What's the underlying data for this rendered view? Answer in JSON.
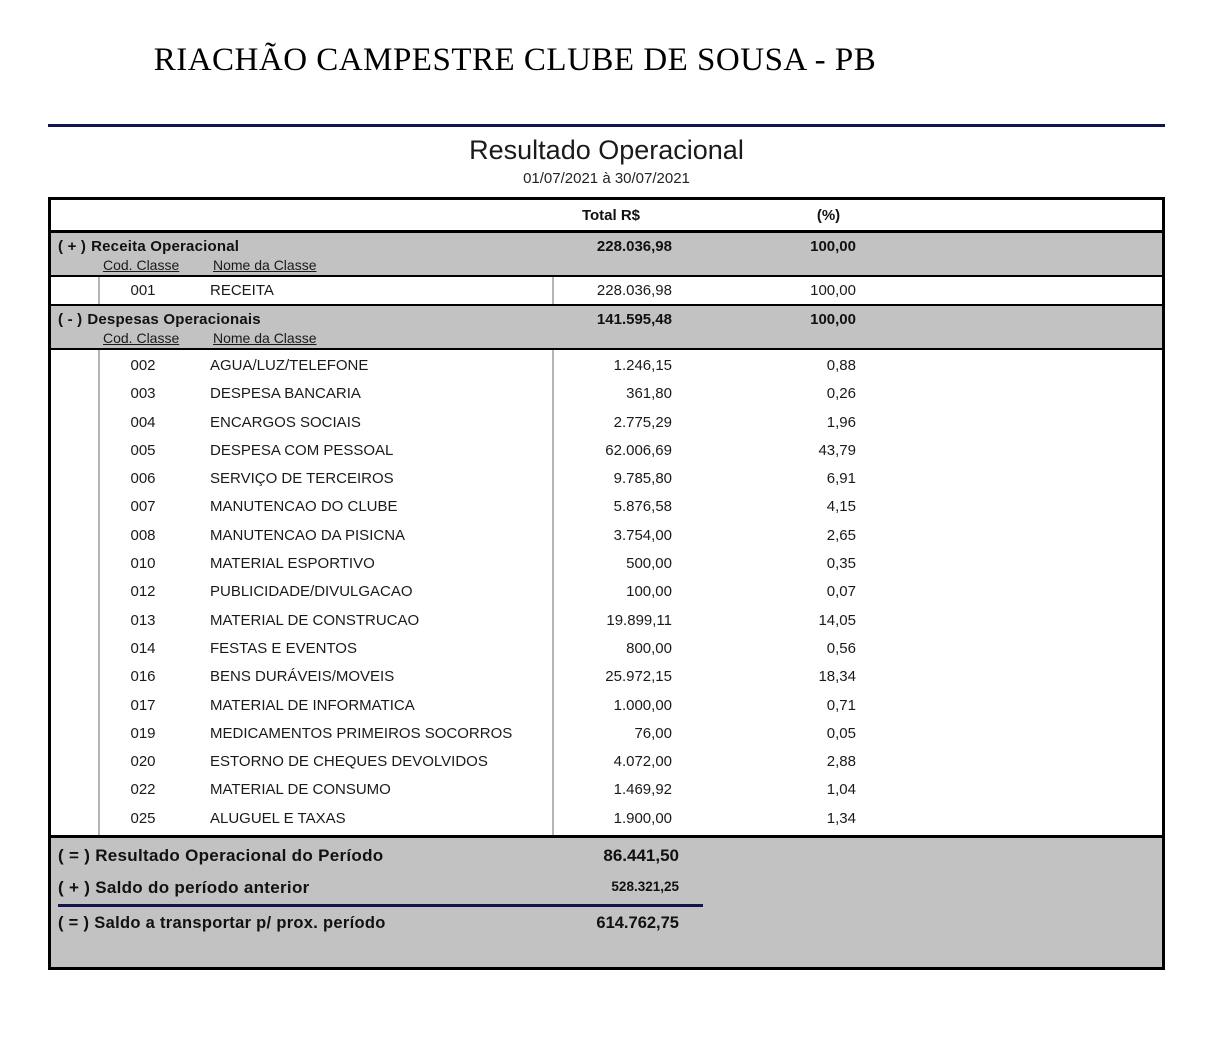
{
  "header": {
    "company": "RIACHÃO CAMPESTRE CLUBE DE SOUSA - PB",
    "title": "Resultado Operacional",
    "period": "01/07/2021 à 30/07/2021"
  },
  "colors": {
    "accent_rule": "#14144d",
    "section_background": "#c2c2c2",
    "table_border": "#000000",
    "column_divider": "#b5b5b5"
  },
  "table": {
    "columns": {
      "total": "Total R$",
      "percent": "(%)"
    },
    "subheader": {
      "code": "Cod. Classe",
      "name": "Nome da  Classe"
    },
    "sections": [
      {
        "marker": "( + )",
        "label": "Receita Operacional",
        "total": "228.036,98",
        "percent": "100,00",
        "rows": [
          {
            "code": "001",
            "name": "RECEITA",
            "total": "228.036,98",
            "percent": "100,00"
          }
        ]
      },
      {
        "marker": "( - )",
        "label": "Despesas Operacionais",
        "total": "141.595,48",
        "percent": "100,00",
        "rows": [
          {
            "code": "002",
            "name": "AGUA/LUZ/TELEFONE",
            "total": "1.246,15",
            "percent": "0,88"
          },
          {
            "code": "003",
            "name": "DESPESA BANCARIA",
            "total": "361,80",
            "percent": "0,26"
          },
          {
            "code": "004",
            "name": "ENCARGOS SOCIAIS",
            "total": "2.775,29",
            "percent": "1,96"
          },
          {
            "code": "005",
            "name": "DESPESA COM PESSOAL",
            "total": "62.006,69",
            "percent": "43,79"
          },
          {
            "code": "006",
            "name": "SERVIÇO DE TERCEIROS",
            "total": "9.785,80",
            "percent": "6,91"
          },
          {
            "code": "007",
            "name": "MANUTENCAO DO CLUBE",
            "total": "5.876,58",
            "percent": "4,15"
          },
          {
            "code": "008",
            "name": "MANUTENCAO DA PISICNA",
            "total": "3.754,00",
            "percent": "2,65"
          },
          {
            "code": "010",
            "name": "MATERIAL ESPORTIVO",
            "total": "500,00",
            "percent": "0,35"
          },
          {
            "code": "012",
            "name": "PUBLICIDADE/DIVULGACAO",
            "total": "100,00",
            "percent": "0,07"
          },
          {
            "code": "013",
            "name": "MATERIAL DE CONSTRUCAO",
            "total": "19.899,11",
            "percent": "14,05"
          },
          {
            "code": "014",
            "name": "FESTAS E EVENTOS",
            "total": "800,00",
            "percent": "0,56"
          },
          {
            "code": "016",
            "name": "BENS DURÁVEIS/MOVEIS",
            "total": "25.972,15",
            "percent": "18,34"
          },
          {
            "code": "017",
            "name": "MATERIAL DE INFORMATICA",
            "total": "1.000,00",
            "percent": "0,71"
          },
          {
            "code": "019",
            "name": "MEDICAMENTOS PRIMEIROS SOCORROS",
            "total": "76,00",
            "percent": "0,05"
          },
          {
            "code": "020",
            "name": "ESTORNO DE CHEQUES DEVOLVIDOS",
            "total": "4.072,00",
            "percent": "2,88"
          },
          {
            "code": "022",
            "name": "MATERIAL DE CONSUMO",
            "total": "1.469,92",
            "percent": "1,04"
          },
          {
            "code": "025",
            "name": "ALUGUEL E TAXAS",
            "total": "1.900,00",
            "percent": "1,34"
          }
        ]
      }
    ],
    "summary": [
      {
        "marker": "( = )",
        "label": "Resultado Operacional do Período",
        "value": "86.441,50"
      },
      {
        "marker": "( + )",
        "label": "Saldo do período anterior",
        "value": "528.321,25"
      },
      {
        "marker": "( = )",
        "label": "Saldo a transportar p/ prox. período",
        "value": "614.762,75"
      }
    ]
  }
}
